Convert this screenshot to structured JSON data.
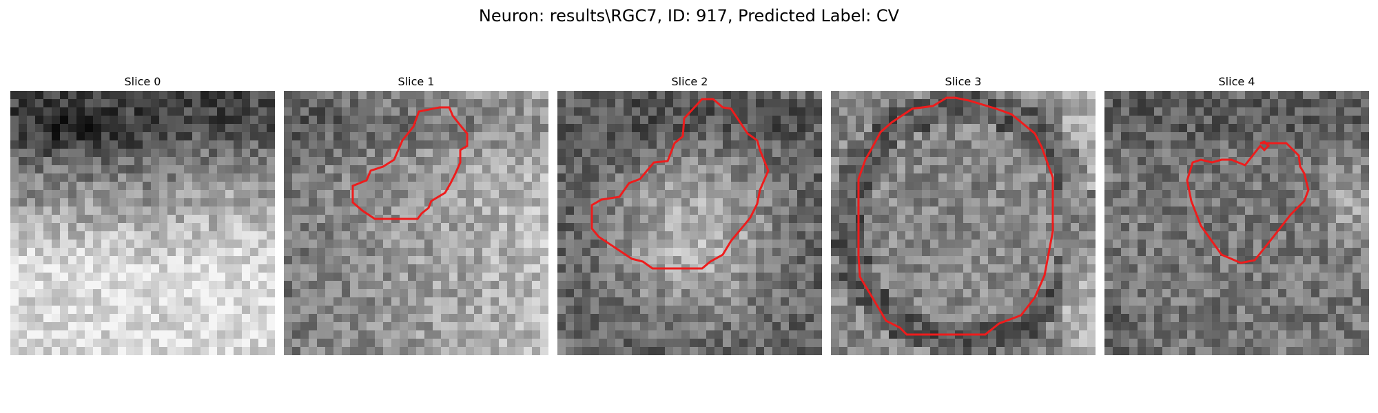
{
  "figure": {
    "title": "Neuron: results\\RGC7, ID: 917, Predicted Label: CV"
  },
  "panels": [
    {
      "title": "Slice 0",
      "has_contour": false
    },
    {
      "title": "Slice 1",
      "has_contour": true
    },
    {
      "title": "Slice 2",
      "has_contour": true
    },
    {
      "title": "Slice 3",
      "has_contour": true
    },
    {
      "title": "Slice 4",
      "has_contour": true
    }
  ],
  "colors": {
    "contour": "#ee1c1c",
    "colormap": "gray"
  }
}
